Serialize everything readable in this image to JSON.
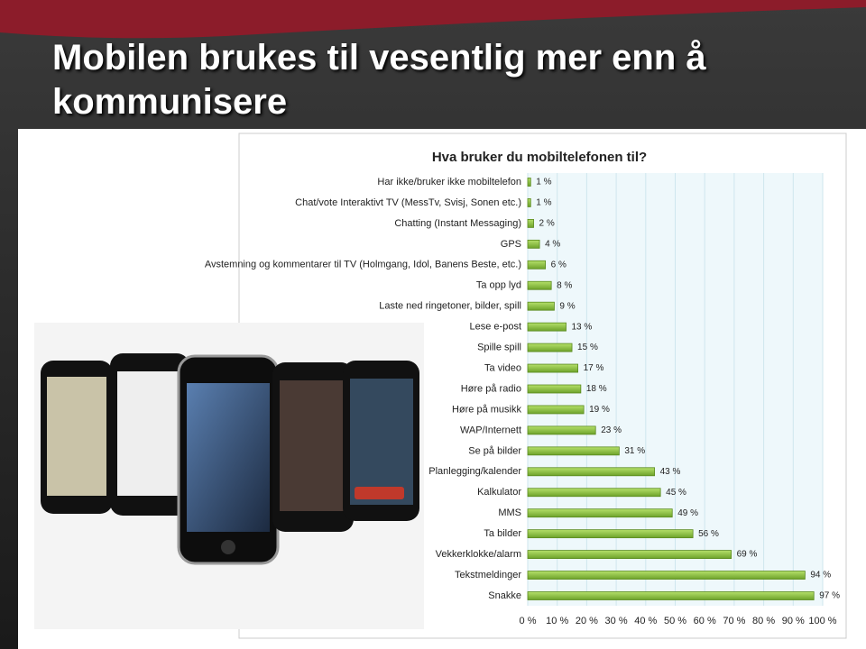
{
  "slide_title": "Mobilen brukes til vesentlig mer enn å kommunisere",
  "chart_data": {
    "type": "bar",
    "orientation": "horizontal",
    "title": "Hva bruker du mobiltelefonen til?",
    "categories": [
      "Har ikke/bruker ikke mobiltelefon",
      "Chat/vote Interaktivt TV (MessTv, Svisj, Sonen etc.)",
      "Chatting (Instant Messaging)",
      "GPS",
      "Avstemning og kommentarer til TV (Holmgang, Idol, Banens Beste, etc.)",
      "Ta opp lyd",
      "Laste ned ringetoner, bilder, spill",
      "Lese e-post",
      "Spille spill",
      "Ta video",
      "Høre på radio",
      "Høre på musikk",
      "WAP/Internett",
      "Se på bilder",
      "Planlegging/kalender",
      "Kalkulator",
      "MMS",
      "Ta bilder",
      "Vekkerklokke/alarm",
      "Tekstmeldinger",
      "Snakke"
    ],
    "values": [
      1,
      1,
      2,
      4,
      6,
      8,
      9,
      13,
      15,
      17,
      18,
      19,
      23,
      31,
      43,
      45,
      49,
      56,
      69,
      94,
      97
    ],
    "value_labels": [
      "1 %",
      "1 %",
      "2 %",
      "4 %",
      "6 %",
      "8 %",
      "9 %",
      "13 %",
      "15 %",
      "17 %",
      "18 %",
      "19 %",
      "23 %",
      "31 %",
      "43 %",
      "45 %",
      "49 %",
      "56 %",
      "69 %",
      "94 %",
      "97 %"
    ],
    "color": "#8cc63e",
    "xlim": [
      0,
      100
    ],
    "xticks": [
      {
        "value": 0,
        "label": "0 %"
      },
      {
        "value": 10,
        "label": "10 %"
      },
      {
        "value": 20,
        "label": "20 %"
      },
      {
        "value": 30,
        "label": "30 %"
      },
      {
        "value": 40,
        "label": "40 %"
      },
      {
        "value": 50,
        "label": "50 %"
      },
      {
        "value": 60,
        "label": "60 %"
      },
      {
        "value": 70,
        "label": "70 %"
      },
      {
        "value": 80,
        "label": "80 %"
      },
      {
        "value": 90,
        "label": "90 %"
      },
      {
        "value": 100,
        "label": "100 %"
      }
    ],
    "grid": true
  }
}
